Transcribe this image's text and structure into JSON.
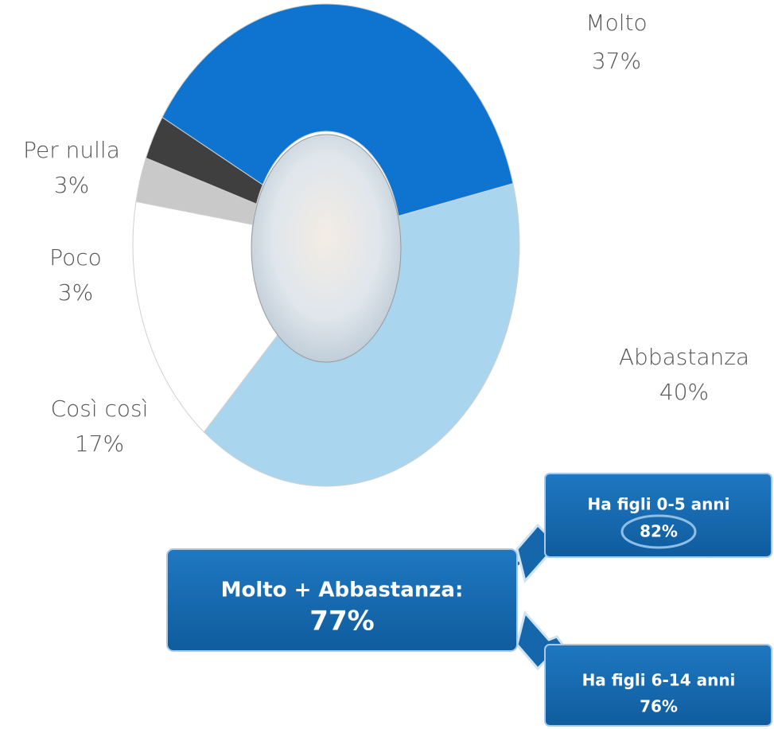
{
  "chart_data": {
    "type": "donut",
    "categories": [
      "Molto",
      "Abbastanza",
      "Così così",
      "Poco",
      "Per nulla"
    ],
    "values": [
      37,
      40,
      17,
      3,
      3
    ],
    "value_labels": [
      "37%",
      "40%",
      "17%",
      "3%",
      "3%"
    ],
    "colors": [
      "#0e74cf",
      "#a9d5ee",
      "#ffffff",
      "#c9c9c9",
      "#3f3f3f"
    ],
    "annotations": {
      "total_label": "Molto + Abbastanza:",
      "total_value": "77%",
      "group1_label": "Ha figli 0-5 anni",
      "group1_value": "82%",
      "group2_label": "Ha figli 6-14 anni",
      "group2_value": "76%"
    }
  }
}
